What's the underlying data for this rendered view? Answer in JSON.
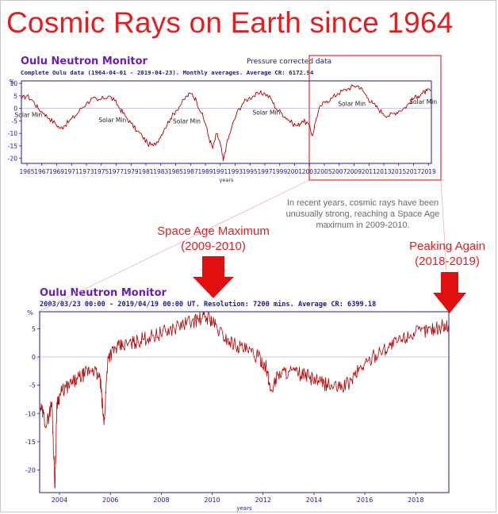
{
  "heading": "Cosmic Rays on Earth since 1964",
  "note": "In recent years, cosmic rays have been unusually strong, reaching a Space Age maximum in 2009-2010.",
  "callouts": {
    "space_age": [
      "Space Age Maximum",
      "(2009-2010)"
    ],
    "peaking": [
      "Peaking Again",
      "(2018-2019)"
    ]
  },
  "colors": {
    "heading": "#e02020",
    "trace": "#b00000",
    "axis": "#1a1a8c",
    "chart_title": "#6a1fb0",
    "highlight_box": "#e04040"
  },
  "chart_data": [
    {
      "type": "line",
      "title": "Oulu Neutron Monitor",
      "subtitle": "Complete Oulu data (1964-04-01 - 2019-04-23). Monthly averages. Average CR: 6172.94",
      "corner_note": "Pressure corrected data",
      "ylabel": "%",
      "xlabel": "years",
      "xlim": [
        1964.25,
        2019.4
      ],
      "ylim": [
        -22,
        11
      ],
      "yticks": [
        10,
        5,
        0,
        -5,
        -10,
        -15,
        -20
      ],
      "xticks": [
        1965,
        1967,
        1969,
        1971,
        1973,
        1975,
        1977,
        1979,
        1981,
        1983,
        1985,
        1987,
        1989,
        1991,
        1993,
        1995,
        1997,
        1999,
        2001,
        2003,
        2005,
        2007,
        2009,
        2011,
        2013,
        2015,
        2017,
        2019
      ],
      "grid": false,
      "annotations": [
        {
          "text": "Solar Min",
          "x": 1965.2,
          "y": -3.5
        },
        {
          "text": "Solar Min",
          "x": 1976.5,
          "y": -5.5
        },
        {
          "text": "Solar Min",
          "x": 1986.5,
          "y": -6
        },
        {
          "text": "Solar Min",
          "x": 1997.2,
          "y": -2.5
        },
        {
          "text": "Solar Min",
          "x": 2008.7,
          "y": 1
        },
        {
          "text": "Solar Min",
          "x": 2018.3,
          "y": 1.8
        }
      ],
      "series": [
        {
          "x": [
            1964.3,
            1965,
            1965.8,
            1966.5,
            1967.3,
            1968,
            1968.8,
            1969.5,
            1970,
            1970.7,
            1971.5,
            1972.3,
            1973,
            1973.8,
            1974.5,
            1975.3,
            1976,
            1976.8,
            1977.5,
            1978.2,
            1979,
            1979.8,
            1980.5,
            1981.2,
            1982,
            1982.8,
            1983.5,
            1984.3,
            1985,
            1985.8,
            1986.5,
            1987.2,
            1987.8,
            1988.5,
            1989,
            1989.5,
            1990,
            1990.5,
            1991,
            1991.4,
            1991.8,
            1992.5,
            1993.2,
            1994,
            1994.8,
            1995.5,
            1996.3,
            1997,
            1997.8,
            1998.5,
            1999.3,
            2000,
            2000.7,
            2001.4,
            2002,
            2002.8,
            2003.4,
            2003.9,
            2004.5,
            2005.3,
            2006,
            2006.8,
            2007.5,
            2008.3,
            2009,
            2009.6,
            2010.2,
            2010.9,
            2011.5,
            2012.2,
            2012.9,
            2013.6,
            2014.3,
            2015,
            2015.7,
            2016.4,
            2017,
            2017.6,
            2018.2,
            2018.8,
            2019.3
          ],
          "y": [
            4,
            5,
            3,
            0,
            -2,
            -4,
            -6,
            -8,
            -7,
            -5,
            -3,
            0,
            2,
            4,
            3,
            4,
            5,
            3,
            0,
            -3,
            -6,
            -9,
            -11,
            -14,
            -15,
            -12,
            -8,
            -4,
            -1,
            2,
            5,
            6,
            3,
            -2,
            -6,
            -12,
            -16,
            -10,
            -14,
            -21,
            -15,
            -8,
            -2,
            2,
            4,
            5,
            6,
            6,
            4,
            0,
            -2,
            -4,
            -6,
            -7,
            -5,
            -6,
            -11,
            -4,
            1,
            3,
            4,
            6,
            7,
            8,
            9,
            9,
            7,
            4,
            2,
            0,
            -2,
            -3,
            -2,
            -1,
            0,
            2,
            4,
            5,
            6,
            7,
            7
          ]
        }
      ]
    },
    {
      "type": "line",
      "title": "Oulu Neutron Monitor",
      "subtitle": "2003/03/23  00:00 - 2019/04/19  00:00 UT. Resolution: 7200 mins. Average CR: 6399.18",
      "ylabel": "%",
      "xlabel": "years",
      "xlim": [
        2003.22,
        2019.3
      ],
      "ylim": [
        -24,
        8
      ],
      "yticks": [
        5,
        0,
        -5,
        -10,
        -15,
        -20
      ],
      "xticks": [
        2004,
        2006,
        2008,
        2010,
        2012,
        2014,
        2016,
        2018
      ],
      "grid": false,
      "series": [
        {
          "x": [
            2003.25,
            2003.5,
            2003.7,
            2003.82,
            2003.9,
            2004.1,
            2004.4,
            2004.7,
            2005,
            2005.3,
            2005.6,
            2005.75,
            2005.9,
            2006.2,
            2006.5,
            2006.9,
            2007.3,
            2007.7,
            2008.2,
            2008.7,
            2009.2,
            2009.6,
            2009.9,
            2010.2,
            2010.6,
            2011,
            2011.4,
            2011.8,
            2012.1,
            2012.3,
            2012.6,
            2013,
            2013.4,
            2013.8,
            2014.2,
            2014.6,
            2015,
            2015.4,
            2015.8,
            2016.2,
            2016.6,
            2017,
            2017.4,
            2017.8,
            2018.2,
            2018.6,
            2019,
            2019.28
          ],
          "y": [
            -9,
            -12,
            -8,
            -23,
            -8,
            -6,
            -5,
            -4,
            -3,
            -2,
            -4,
            -12,
            0,
            1.5,
            2,
            2.5,
            3.2,
            3.8,
            4.5,
            5.5,
            6.3,
            6.8,
            7,
            5,
            3,
            2,
            1,
            0,
            -1.5,
            -6,
            -3,
            -2.5,
            -3,
            -3.5,
            -4.5,
            -5,
            -5.5,
            -4.5,
            -2,
            -0.5,
            1,
            2,
            3,
            4,
            4.5,
            5,
            5.3,
            5.5
          ]
        }
      ]
    }
  ]
}
